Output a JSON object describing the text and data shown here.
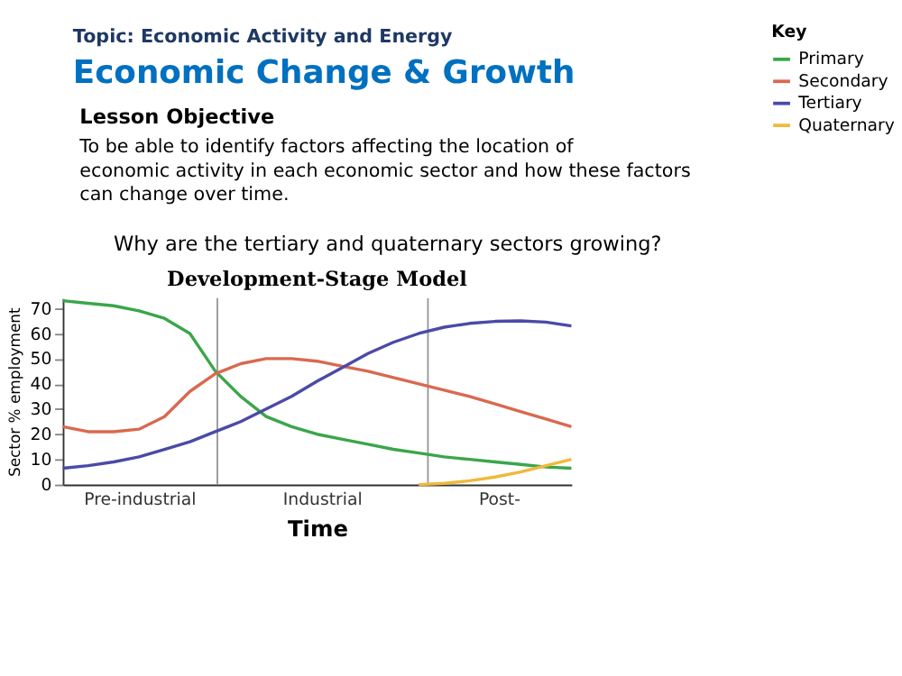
{
  "chart_data": {
    "type": "line",
    "title": "Development-Stage Model",
    "xlabel": "Time",
    "ylabel": "Sector % employment",
    "legend_title": "Key",
    "legend": "right",
    "grid": false,
    "categories": [
      null,
      null,
      null,
      null,
      null,
      null,
      null,
      null,
      null,
      null,
      null,
      null,
      null,
      null,
      null,
      null,
      null,
      null,
      null,
      null,
      null
    ],
    "ylim": [
      0,
      74
    ],
    "yticks": [
      0,
      10,
      20,
      30,
      40,
      50,
      60,
      70
    ],
    "series": [
      {
        "name": "Primary",
        "color": "#3aa64a",
        "values": [
          73,
          72,
          71,
          69,
          66,
          60,
          45,
          35,
          27,
          23,
          20,
          18,
          16,
          14,
          12.5,
          11,
          10,
          9,
          8,
          7,
          6.5
        ]
      },
      {
        "name": "Secondary",
        "color": "#d9694f",
        "values": [
          23,
          21,
          21,
          22,
          27,
          37,
          44,
          48,
          50,
          50,
          49,
          47,
          45,
          42.5,
          40,
          37.5,
          35,
          32,
          29,
          26,
          23
        ]
      },
      {
        "name": "Tertiary",
        "color": "#4a4aa8",
        "values": [
          6.5,
          7.5,
          9,
          11,
          14,
          17,
          21,
          25,
          30,
          35,
          41,
          46.5,
          52,
          56.5,
          60,
          62.5,
          64,
          64.8,
          65,
          64.5,
          63
        ]
      },
      {
        "name": "Quaternary",
        "color": "#f0b93a",
        "values": [
          null,
          null,
          null,
          null,
          null,
          null,
          null,
          null,
          null,
          null,
          null,
          null,
          null,
          null,
          0,
          0.5,
          1.5,
          3,
          5,
          7.5,
          10
        ]
      }
    ],
    "annotations": [
      "Topic: Economic Activity and Energy",
      "Economic Change & Growth",
      "Lesson Objective",
      "To be able to identify factors affecting the location of economic activity in each economic sector and how these factors can change over time.",
      "Why are the tertiary and quaternary sectors growing?",
      "Pre-industrial",
      "Industrial",
      "Post-"
    ]
  }
}
